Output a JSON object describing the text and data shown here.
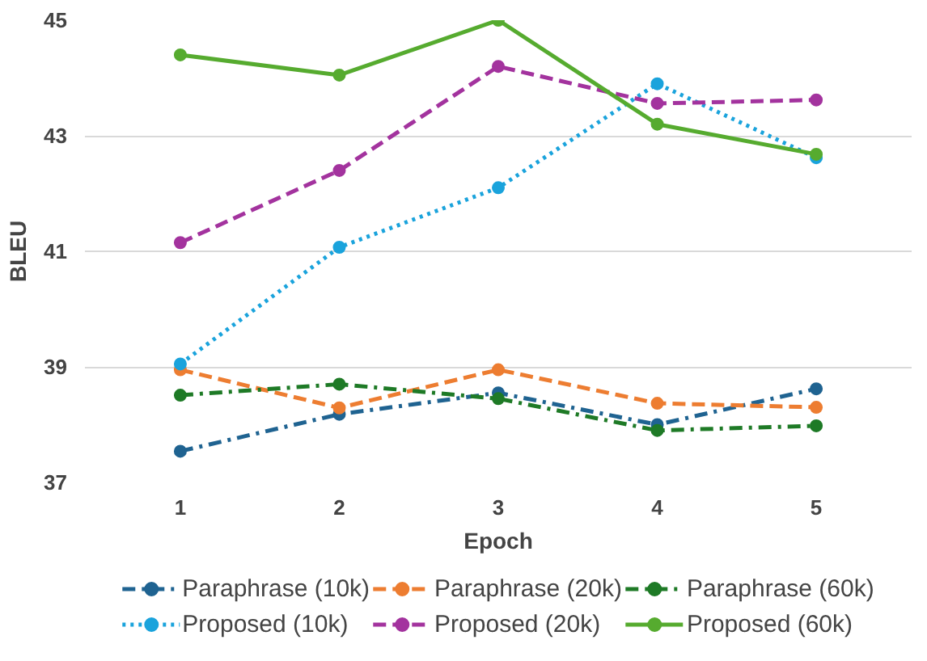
{
  "chart_data": {
    "type": "line",
    "xlabel": "Epoch",
    "ylabel": "BLEU",
    "categories": [
      "1",
      "2",
      "3",
      "4",
      "5"
    ],
    "ylim": [
      37,
      45
    ],
    "yticks": [
      37,
      39,
      41,
      43,
      45
    ],
    "grid": "y",
    "legend": "bottom",
    "marker": "circle",
    "series": [
      {
        "name": "Paraphrase (10k)",
        "color": "#1f6391",
        "line_style": "dashdot",
        "values": [
          37.54,
          38.18,
          38.55,
          38.0,
          38.62
        ]
      },
      {
        "name": "Paraphrase (20k)",
        "color": "#ed7d31",
        "line_style": "dashed",
        "values": [
          38.95,
          38.29,
          38.95,
          38.37,
          38.3
        ]
      },
      {
        "name": "Paraphrase (60k)",
        "color": "#1e7a26",
        "line_style": "dashdot",
        "values": [
          38.51,
          38.7,
          38.45,
          37.9,
          37.98
        ]
      },
      {
        "name": "Proposed (10k)",
        "color": "#1aa3dc",
        "line_style": "dotted",
        "values": [
          39.05,
          41.07,
          42.1,
          43.9,
          42.62
        ]
      },
      {
        "name": "Proposed (20k)",
        "color": "#a3339e",
        "line_style": "dashed",
        "values": [
          41.15,
          42.4,
          44.2,
          43.56,
          43.62
        ]
      },
      {
        "name": "Proposed (60k)",
        "color": "#56ab2f",
        "line_style": "solid",
        "values": [
          44.4,
          44.05,
          45.0,
          43.2,
          42.68
        ]
      }
    ]
  }
}
